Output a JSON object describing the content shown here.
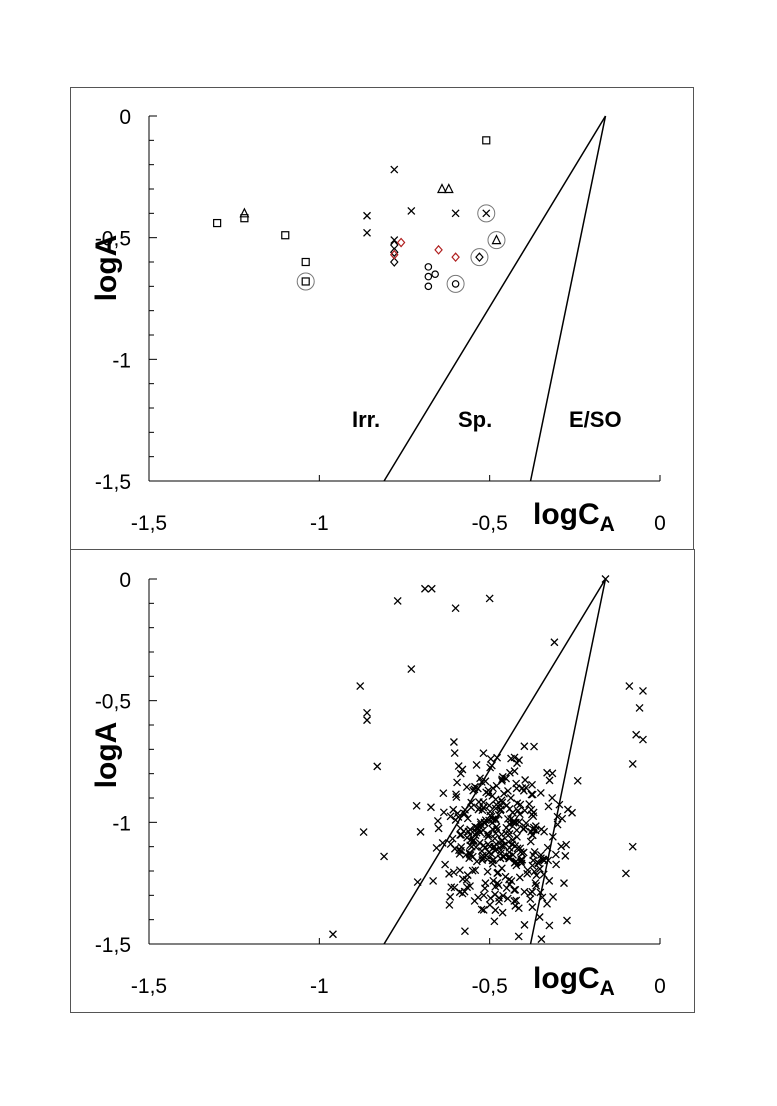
{
  "chart_data": [
    {
      "type": "scatter",
      "panel": "top",
      "xlabel": "logC",
      "xlabel_sub": "A",
      "ylabel": "logA",
      "xlim": [
        -1.5,
        0
      ],
      "ylim": [
        -1.5,
        0
      ],
      "x_tick_labels": [
        "-1,5",
        "-1",
        "-0,5",
        "0"
      ],
      "y_tick_labels": [
        "0",
        "-0,5",
        "-1",
        "-1,5"
      ],
      "x_ticks": [
        -1.5,
        -1,
        -0.5,
        0
      ],
      "y_ticks": [
        0,
        -0.5,
        -1,
        -1.5
      ],
      "region_labels": [
        {
          "text": "Irr.",
          "x": -0.93,
          "y": -1.25
        },
        {
          "text": "Sp.",
          "x": -0.55,
          "y": -1.25
        },
        {
          "text": "E/SO",
          "x": -0.2,
          "y": -1.25
        }
      ],
      "boundary_lines": [
        {
          "x": [
            -0.81,
            -0.16
          ],
          "y": [
            -1.5,
            0
          ]
        },
        {
          "x": [
            -0.38,
            -0.16
          ],
          "y": [
            -1.5,
            0
          ]
        }
      ],
      "series": [
        {
          "marker": "square",
          "color": "#000000",
          "points": [
            [
              -1.3,
              -0.44
            ],
            [
              -1.22,
              -0.42
            ],
            [
              -1.1,
              -0.49
            ],
            [
              -1.04,
              -0.6
            ],
            [
              -1.04,
              -0.68
            ],
            [
              -0.51,
              -0.1
            ]
          ]
        },
        {
          "marker": "triangle",
          "color": "#000000",
          "points": [
            [
              -1.22,
              -0.4
            ],
            [
              -0.64,
              -0.3
            ],
            [
              -0.62,
              -0.3
            ],
            [
              -0.48,
              -0.51
            ]
          ]
        },
        {
          "marker": "cross",
          "color": "#000000",
          "points": [
            [
              -0.78,
              -0.22
            ],
            [
              -0.86,
              -0.41
            ],
            [
              -0.86,
              -0.48
            ],
            [
              -0.73,
              -0.39
            ],
            [
              -0.6,
              -0.4
            ],
            [
              -0.51,
              -0.4
            ],
            [
              -0.78,
              -0.51
            ]
          ]
        },
        {
          "marker": "diamond",
          "color": "#000000",
          "points": [
            [
              -0.78,
              -0.53
            ],
            [
              -0.78,
              -0.56
            ],
            [
              -0.78,
              -0.6
            ],
            [
              -0.53,
              -0.58
            ]
          ]
        },
        {
          "marker": "diamond",
          "color": "#b02020",
          "points": [
            [
              -0.76,
              -0.52
            ],
            [
              -0.78,
              -0.57
            ],
            [
              -0.65,
              -0.55
            ],
            [
              -0.6,
              -0.58
            ]
          ]
        },
        {
          "marker": "circle",
          "color": "#000000",
          "points": [
            [
              -0.68,
              -0.62
            ],
            [
              -0.68,
              -0.66
            ],
            [
              -0.66,
              -0.65
            ],
            [
              -0.68,
              -0.7
            ],
            [
              -0.6,
              -0.69
            ]
          ]
        }
      ],
      "highlighted": [
        [
          -1.04,
          -0.68
        ],
        [
          -0.51,
          -0.4
        ],
        [
          -0.48,
          -0.51
        ],
        [
          -0.53,
          -0.58
        ],
        [
          -0.6,
          -0.69
        ]
      ]
    },
    {
      "type": "scatter",
      "panel": "bottom",
      "xlabel": "logC",
      "xlabel_sub": "A",
      "ylabel": "logA",
      "xlim": [
        -1.5,
        0
      ],
      "ylim": [
        -1.5,
        0
      ],
      "x_tick_labels": [
        "-1,5",
        "-1",
        "-0,5",
        "0"
      ],
      "y_tick_labels": [
        "0",
        "-0,5",
        "-1",
        "-1,5"
      ],
      "x_ticks": [
        -1.5,
        -1,
        -0.5,
        0
      ],
      "y_ticks": [
        0,
        -0.5,
        -1,
        -1.5
      ],
      "boundary_lines": [
        {
          "x": [
            -0.81,
            -0.16
          ],
          "y": [
            -1.5,
            0
          ]
        },
        {
          "x": [
            -0.38,
            -0.16
          ],
          "y": [
            -1.5,
            0
          ]
        }
      ],
      "series": [
        {
          "marker": "cross",
          "color": "#000000",
          "n_points": 380,
          "fixed_points": [
            [
              -0.16,
              0.0
            ],
            [
              -0.77,
              -0.09
            ],
            [
              -0.69,
              -0.04
            ],
            [
              -0.67,
              -0.04
            ],
            [
              -0.5,
              -0.08
            ],
            [
              -0.6,
              -0.12
            ],
            [
              -0.73,
              -0.37
            ],
            [
              -0.88,
              -0.44
            ],
            [
              -0.86,
              -0.55
            ],
            [
              -0.86,
              -0.58
            ],
            [
              -0.83,
              -0.77
            ],
            [
              -0.87,
              -1.04
            ],
            [
              -0.81,
              -1.14
            ],
            [
              -0.96,
              -1.46
            ],
            [
              -0.31,
              -0.26
            ],
            [
              -0.09,
              -0.44
            ],
            [
              -0.05,
              -0.46
            ],
            [
              -0.06,
              -0.53
            ],
            [
              -0.07,
              -0.64
            ],
            [
              -0.05,
              -0.66
            ],
            [
              -0.08,
              -1.1
            ],
            [
              -0.1,
              -1.21
            ],
            [
              -0.08,
              -0.76
            ]
          ],
          "cloud": {
            "x_range": [
              -0.79,
              -0.13
            ],
            "y_range": [
              -1.48,
              -0.3
            ],
            "center": [
              -0.47,
              -1.08
            ]
          }
        }
      ]
    }
  ]
}
